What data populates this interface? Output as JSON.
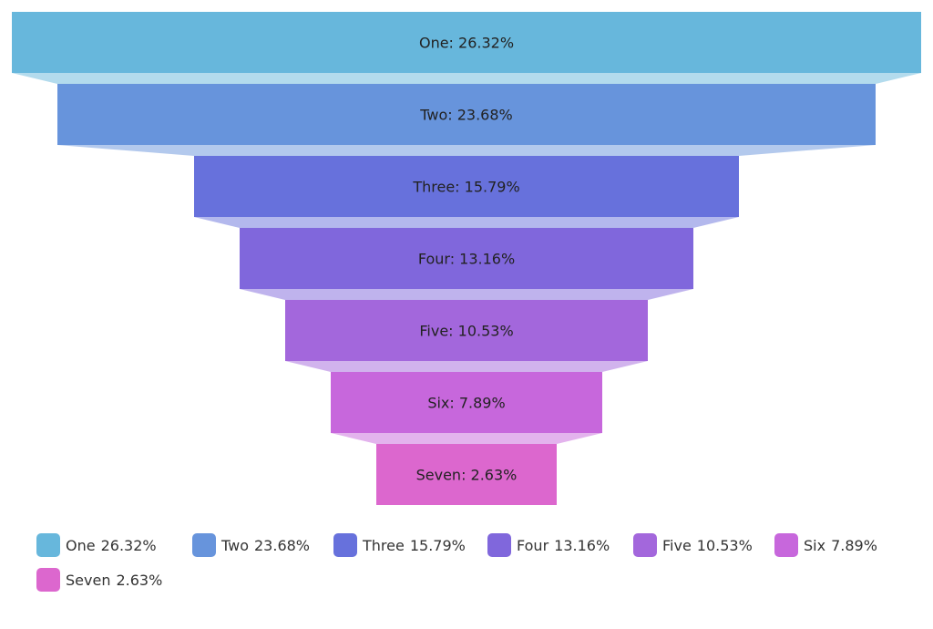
{
  "chart_data": {
    "type": "funnel",
    "title": "",
    "categories": [
      "One",
      "Two",
      "Three",
      "Four",
      "Five",
      "Six",
      "Seven"
    ],
    "values": [
      26.32,
      23.68,
      15.79,
      13.16,
      10.53,
      7.89,
      2.63
    ],
    "labels": [
      "One: 26.32%",
      "Two: 23.68%",
      "Three: 15.79%",
      "Four: 13.16%",
      "Five: 10.53%",
      "Six: 7.89%",
      "Seven: 2.63%"
    ],
    "colors": [
      "#67b7dc",
      "#6794dc",
      "#6771dc",
      "#8067dc",
      "#a367dc",
      "#c767dc",
      "#dc67ce"
    ],
    "legend": {
      "position": "bottom",
      "items": [
        {
          "name": "One",
          "value": "26.32%"
        },
        {
          "name": "Two",
          "value": "23.68%"
        },
        {
          "name": "Three",
          "value": "15.79%"
        },
        {
          "name": "Four",
          "value": "13.16%"
        },
        {
          "name": "Five",
          "value": "10.53%"
        },
        {
          "name": "Six",
          "value": "7.89%"
        },
        {
          "name": "Seven",
          "value": "2.63%"
        }
      ]
    }
  }
}
